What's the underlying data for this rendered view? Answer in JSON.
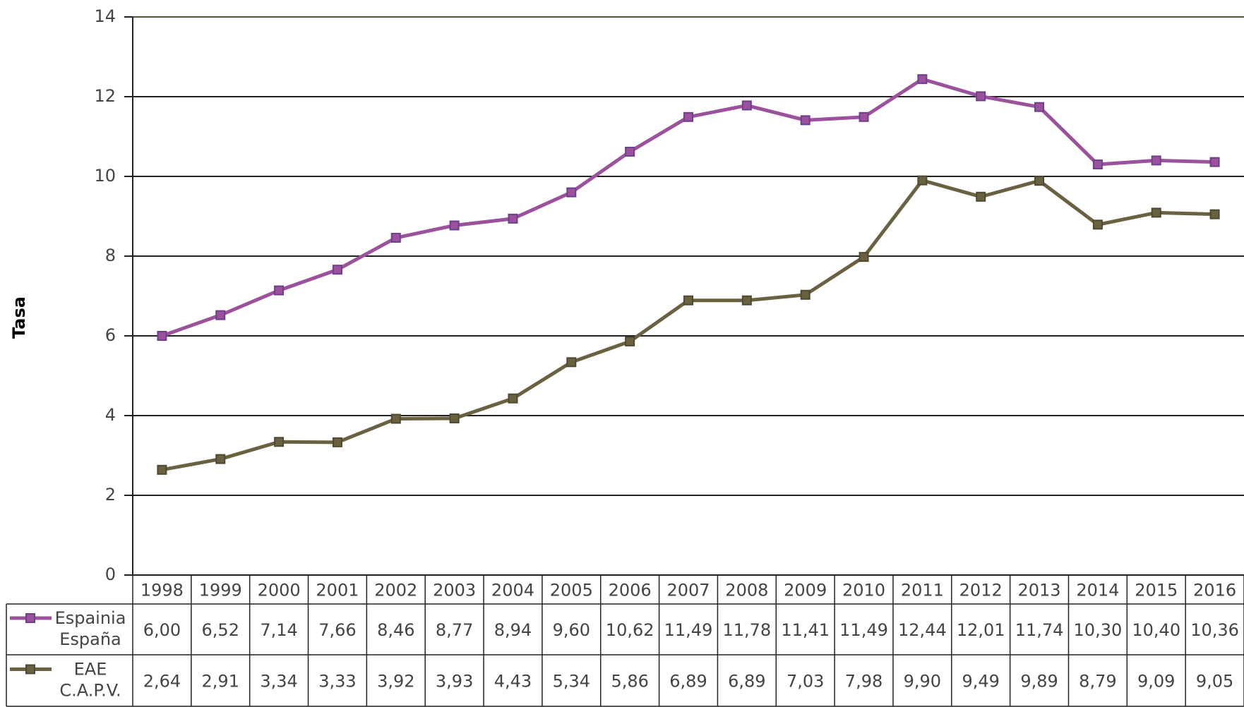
{
  "chart_data": {
    "type": "line",
    "y_label": "Tasa",
    "categories": [
      "1998",
      "1999",
      "2000",
      "2001",
      "2002",
      "2003",
      "2004",
      "2005",
      "2006",
      "2007",
      "2008",
      "2009",
      "2010",
      "2011",
      "2012",
      "2013",
      "2014",
      "2015",
      "2016"
    ],
    "series": [
      {
        "name": "Espainia España",
        "color": "#9b519b",
        "marker_color": "#6e3f8c",
        "values": [
          6.0,
          6.52,
          7.14,
          7.66,
          8.46,
          8.77,
          8.94,
          9.6,
          10.62,
          11.49,
          11.78,
          11.41,
          11.49,
          12.44,
          12.01,
          11.74,
          10.3,
          10.4,
          10.36
        ],
        "value_labels": [
          "6,00",
          "6,52",
          "7,14",
          "7,66",
          "8,46",
          "8,77",
          "8,94",
          "9,60",
          "10,62",
          "11,49",
          "11,78",
          "11,41",
          "11,49",
          "12,44",
          "12,01",
          "11,74",
          "10,30",
          "10,40",
          "10,36"
        ]
      },
      {
        "name": "EAE C.A.P.V.",
        "color": "#6a6141",
        "marker_color": "#4f4930",
        "values": [
          2.64,
          2.91,
          3.34,
          3.33,
          3.92,
          3.93,
          4.43,
          5.34,
          5.86,
          6.89,
          6.89,
          7.03,
          7.98,
          9.9,
          9.49,
          9.89,
          8.79,
          9.09,
          9.05
        ],
        "value_labels": [
          "2,64",
          "2,91",
          "3,34",
          "3,33",
          "3,92",
          "3,93",
          "4,43",
          "5,34",
          "5,86",
          "6,89",
          "6,89",
          "7,03",
          "7,98",
          "9,90",
          "9,49",
          "9,89",
          "8,79",
          "9,09",
          "9,05"
        ]
      }
    ],
    "ylim": [
      0,
      14
    ],
    "yticks": [
      0,
      2,
      4,
      6,
      8,
      10,
      12,
      14
    ],
    "grid": true
  }
}
